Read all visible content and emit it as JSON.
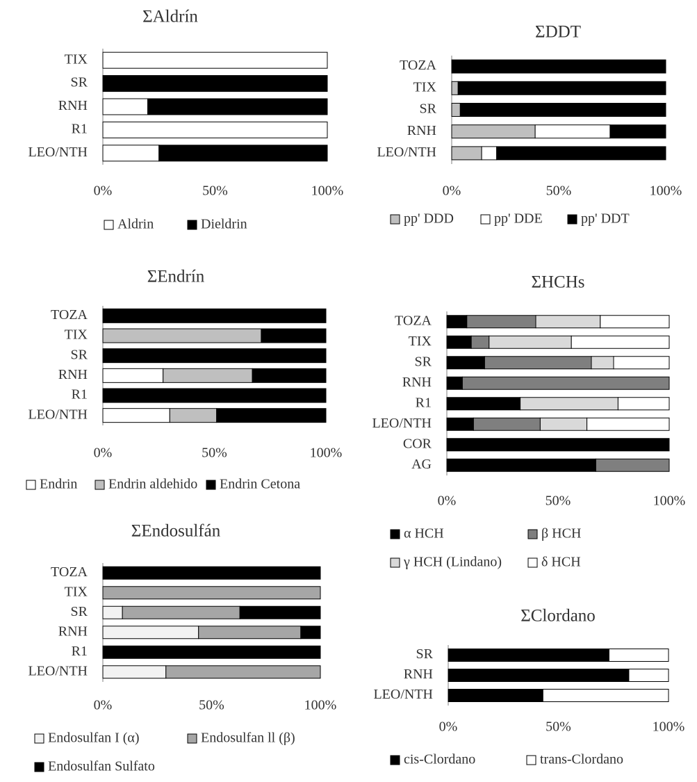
{
  "chart_data": [
    {
      "type": "bar",
      "stacked": "percent",
      "orientation": "horizontal",
      "title": "ΣAldrín",
      "categories": [
        "TIX",
        "SR",
        "RNH",
        "R1",
        "LEO/NTH"
      ],
      "series": [
        {
          "name": "Aldrin",
          "color": "#ffffff",
          "values": [
            100,
            0,
            20,
            100,
            25
          ]
        },
        {
          "name": "Dieldrin",
          "color": "#000000",
          "values": [
            0,
            100,
            80,
            0,
            75
          ]
        }
      ],
      "xticks": [
        "0%",
        "50%",
        "100%"
      ],
      "xlim": [
        0,
        100
      ],
      "legend": "bottom"
    },
    {
      "type": "bar",
      "stacked": "percent",
      "orientation": "horizontal",
      "title": "ΣDDT",
      "categories": [
        "TOZA",
        "TIX",
        "SR",
        "RNH",
        "LEO/NTH"
      ],
      "series": [
        {
          "name": "pp' DDD",
          "color": "#bfbfbf",
          "values": [
            0,
            3,
            4,
            39,
            14
          ]
        },
        {
          "name": "pp' DDE",
          "color": "#ffffff",
          "values": [
            0,
            0,
            0,
            35,
            7
          ]
        },
        {
          "name": "pp' DDT",
          "color": "#000000",
          "values": [
            100,
            97,
            96,
            26,
            79
          ]
        }
      ],
      "xticks": [
        "0%",
        "50%",
        "100%"
      ],
      "xlim": [
        0,
        100
      ],
      "legend": "bottom"
    },
    {
      "type": "bar",
      "stacked": "percent",
      "orientation": "horizontal",
      "title": "ΣEndrín",
      "categories": [
        "TOZA",
        "TIX",
        "SR",
        "RNH",
        "R1",
        "LEO/NTH"
      ],
      "series": [
        {
          "name": "Endrin",
          "color": "#ffffff",
          "values": [
            0,
            0,
            0,
            27,
            0,
            30
          ]
        },
        {
          "name": "Endrin aldehido",
          "color": "#bfbfbf",
          "values": [
            0,
            71,
            0,
            40,
            0,
            21
          ]
        },
        {
          "name": "Endrin Cetona",
          "color": "#000000",
          "values": [
            100,
            29,
            100,
            33,
            100,
            49
          ]
        }
      ],
      "xticks": [
        "0%",
        "50%",
        "100%"
      ],
      "xlim": [
        0,
        100
      ],
      "legend": "bottom"
    },
    {
      "type": "bar",
      "stacked": "percent",
      "orientation": "horizontal",
      "title": "ΣHCHs",
      "categories": [
        "TOZA",
        "TIX",
        "SR",
        "RNH",
        "R1",
        "LEO/NTH",
        "COR",
        "AG"
      ],
      "series": [
        {
          "name": "α HCH",
          "color": "#000000",
          "values": [
            9,
            11,
            17,
            7,
            33,
            12,
            100,
            67
          ]
        },
        {
          "name": "β HCH",
          "color": "#7f7f7f",
          "values": [
            31,
            8,
            48,
            93,
            0,
            30,
            0,
            33
          ]
        },
        {
          "name": "γ HCH (Lindano)",
          "color": "#d9d9d9",
          "values": [
            29,
            37,
            10,
            0,
            44,
            21,
            0,
            0
          ]
        },
        {
          "name": "δ HCH",
          "color": "#ffffff",
          "values": [
            31,
            44,
            25,
            0,
            23,
            37,
            0,
            0
          ]
        }
      ],
      "xticks": [
        "0%",
        "50%",
        "100%"
      ],
      "xlim": [
        0,
        100
      ],
      "legend": "bottom"
    },
    {
      "type": "bar",
      "stacked": "percent",
      "orientation": "horizontal",
      "title": "ΣEndosulfán",
      "categories": [
        "TOZA",
        "TIX",
        "SR",
        "RNH",
        "R1",
        "LEO/NTH"
      ],
      "series": [
        {
          "name": "Endosulfan I (α)",
          "color": "#f2f2f2",
          "values": [
            0,
            0,
            9,
            44,
            0,
            29
          ]
        },
        {
          "name": "Endosulfan ll (β)",
          "color": "#a6a6a6",
          "values": [
            0,
            100,
            54,
            47,
            0,
            71
          ]
        },
        {
          "name": "Endosulfan Sulfato",
          "color": "#000000",
          "values": [
            100,
            0,
            37,
            9,
            100,
            0
          ]
        }
      ],
      "xticks": [
        "0%",
        "50%",
        "100%"
      ],
      "xlim": [
        0,
        100
      ],
      "legend": "bottom"
    },
    {
      "type": "bar",
      "stacked": "percent",
      "orientation": "horizontal",
      "title": "ΣClordano",
      "categories": [
        "SR",
        "RNH",
        "LEO/NTH"
      ],
      "series": [
        {
          "name": "cis-Clordano",
          "color": "#000000",
          "values": [
            73,
            82,
            43
          ]
        },
        {
          "name": "trans-Clordano",
          "color": "#ffffff",
          "values": [
            27,
            18,
            57
          ]
        }
      ],
      "xticks": [
        "0%",
        "50%",
        "100%"
      ],
      "xlim": [
        0,
        100
      ],
      "legend": "bottom"
    }
  ]
}
